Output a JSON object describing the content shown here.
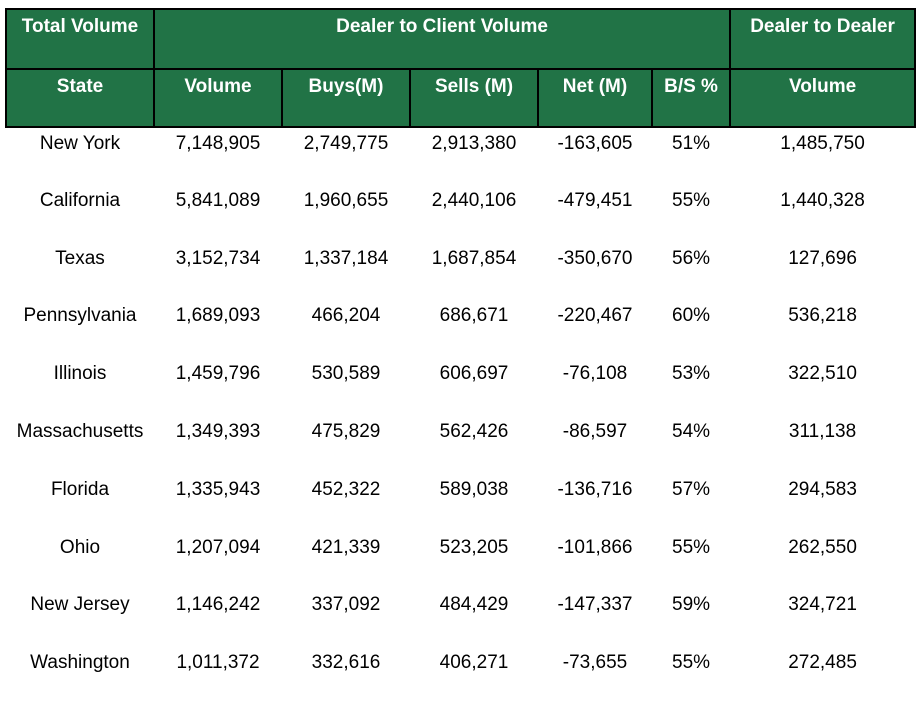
{
  "header": {
    "group_total": "Total Volume",
    "group_d2c": "Dealer to Client Volume",
    "group_d2d": "Dealer to Dealer",
    "columns": [
      "State",
      "Volume",
      "Buys(M)",
      "Sells (M)",
      "Net (M)",
      "B/S %",
      "Volume"
    ]
  },
  "colors": {
    "header_bg": "#217346",
    "header_text": "#ffffff",
    "border": "#000000"
  },
  "rows": [
    [
      "New York",
      "7,148,905",
      "2,749,775",
      "2,913,380",
      "-163,605",
      "51%",
      "1,485,750"
    ],
    [
      "California",
      "5,841,089",
      "1,960,655",
      "2,440,106",
      "-479,451",
      "55%",
      "1,440,328"
    ],
    [
      "Texas",
      "3,152,734",
      "1,337,184",
      "1,687,854",
      "-350,670",
      "56%",
      "127,696"
    ],
    [
      "Pennsylvania",
      "1,689,093",
      "466,204",
      "686,671",
      "-220,467",
      "60%",
      "536,218"
    ],
    [
      "Illinois",
      "1,459,796",
      "530,589",
      "606,697",
      "-76,108",
      "53%",
      "322,510"
    ],
    [
      "Massachusetts",
      "1,349,393",
      "475,829",
      "562,426",
      "-86,597",
      "54%",
      "311,138"
    ],
    [
      "Florida",
      "1,335,943",
      "452,322",
      "589,038",
      "-136,716",
      "57%",
      "294,583"
    ],
    [
      "Ohio",
      "1,207,094",
      "421,339",
      "523,205",
      "-101,866",
      "55%",
      "262,550"
    ],
    [
      "New Jersey",
      "1,146,242",
      "337,092",
      "484,429",
      "-147,337",
      "59%",
      "324,721"
    ],
    [
      "Washington",
      "1,011,372",
      "332,616",
      "406,271",
      "-73,655",
      "55%",
      "272,485"
    ]
  ]
}
